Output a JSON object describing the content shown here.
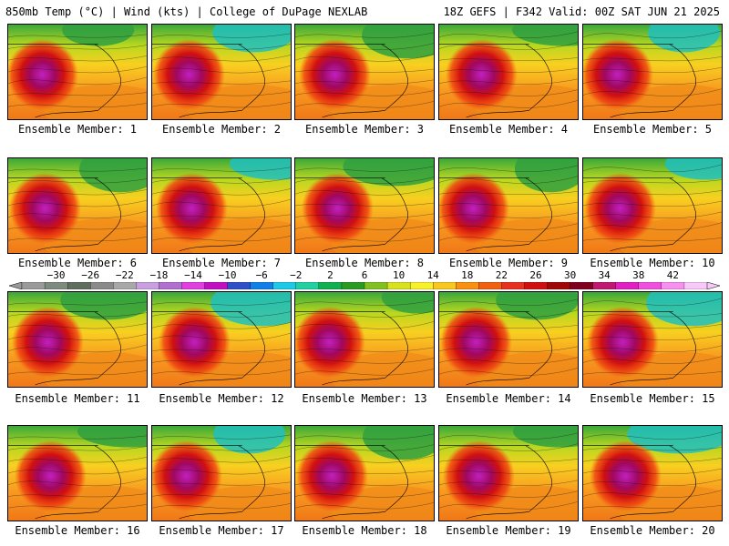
{
  "header": {
    "left": "850mb Temp (°C) | Wind (kts) | College of DuPage NEXLAB",
    "right": "18Z GEFS | F342 Valid: 00Z SAT JUN 21 2025"
  },
  "member_label_prefix": "Ensemble Member: ",
  "members": [
    1,
    2,
    3,
    4,
    5,
    6,
    7,
    8,
    9,
    10,
    11,
    12,
    13,
    14,
    15,
    16,
    17,
    18,
    19,
    20
  ],
  "colorbar": {
    "tick_labels": [
      "−30",
      "−26",
      "−22",
      "−18",
      "−14",
      "−10",
      "−6",
      "−2",
      "2",
      "6",
      "10",
      "14",
      "18",
      "22",
      "26",
      "30",
      "34",
      "38",
      "42"
    ],
    "tick_values": [
      -30,
      -26,
      -22,
      -18,
      -14,
      -10,
      -6,
      -2,
      2,
      6,
      10,
      14,
      18,
      22,
      26,
      30,
      34,
      38,
      42
    ],
    "range": [
      -34,
      46
    ],
    "colors": [
      "#9a9a9a",
      "#7d8a7d",
      "#606e60",
      "#8a8a8a",
      "#a8a8a8",
      "#c8a0e0",
      "#b070d0",
      "#e040e0",
      "#c010c0",
      "#3050c8",
      "#1080e8",
      "#20c8e8",
      "#20d0a0",
      "#10b050",
      "#2a9a20",
      "#80c020",
      "#d8e020",
      "#f8f028",
      "#f8c820",
      "#f89010",
      "#f06010",
      "#e83020",
      "#d01010",
      "#a00808",
      "#800020",
      "#c01870",
      "#e020c0",
      "#f050e0",
      "#f890f0",
      "#f8c8f8"
    ]
  }
}
